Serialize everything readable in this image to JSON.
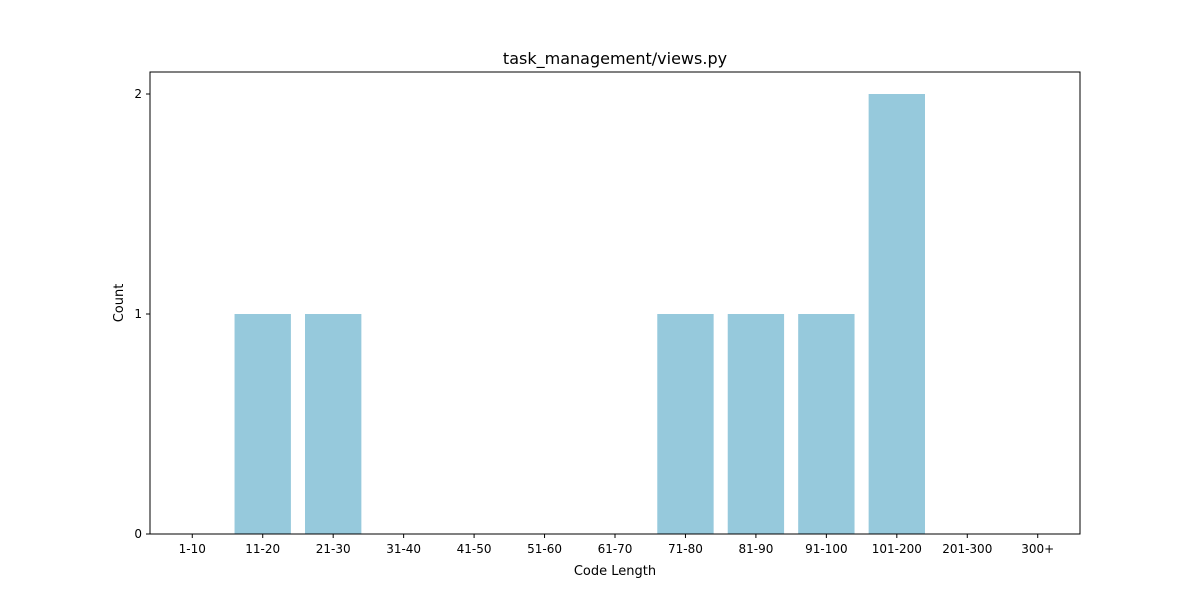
{
  "chart_data": {
    "type": "bar",
    "title": "task_management/views.py",
    "xlabel": "Code Length",
    "ylabel": "Count",
    "categories": [
      "1-10",
      "11-20",
      "21-30",
      "31-40",
      "41-50",
      "51-60",
      "61-70",
      "71-80",
      "81-90",
      "91-100",
      "101-200",
      "201-300",
      "300+"
    ],
    "values": [
      0,
      1,
      1,
      0,
      0,
      0,
      0,
      1,
      1,
      1,
      2,
      0,
      0
    ],
    "ylim": [
      0,
      2.1
    ],
    "yticks": [
      0,
      1,
      2
    ],
    "bar_color": "#96c9dc",
    "grid": false,
    "legend": "none"
  }
}
